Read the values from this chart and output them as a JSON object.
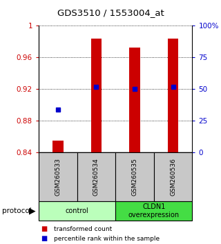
{
  "title": "GDS3510 / 1553004_at",
  "samples": [
    "GSM260533",
    "GSM260534",
    "GSM260535",
    "GSM260536"
  ],
  "bar_values": [
    0.855,
    0.984,
    0.972,
    0.984
  ],
  "percentile_values": [
    0.894,
    0.923,
    0.92,
    0.923
  ],
  "ylim_left": [
    0.84,
    1.0
  ],
  "ylim_right": [
    0,
    100
  ],
  "yticks_left": [
    0.84,
    0.88,
    0.92,
    0.96,
    1.0
  ],
  "ytick_labels_left": [
    "0.84",
    "0.88",
    "0.92",
    "0.96",
    "1"
  ],
  "yticks_right": [
    0,
    25,
    50,
    75,
    100
  ],
  "ytick_labels_right": [
    "0",
    "25",
    "50",
    "75",
    "100%"
  ],
  "bar_color": "#cc0000",
  "point_color": "#0000cc",
  "bar_bottom": 0.84,
  "groups": [
    {
      "label": "control",
      "cols": [
        0,
        1
      ],
      "color": "#bbffbb"
    },
    {
      "label": "CLDN1\noverexpression",
      "cols": [
        2,
        3
      ],
      "color": "#44dd44"
    }
  ],
  "group_header": "protocol",
  "legend_bar_label": "transformed count",
  "legend_point_label": "percentile rank within the sample",
  "bar_width": 0.28,
  "sample_bg": "#c8c8c8",
  "grid_color": "#000000"
}
